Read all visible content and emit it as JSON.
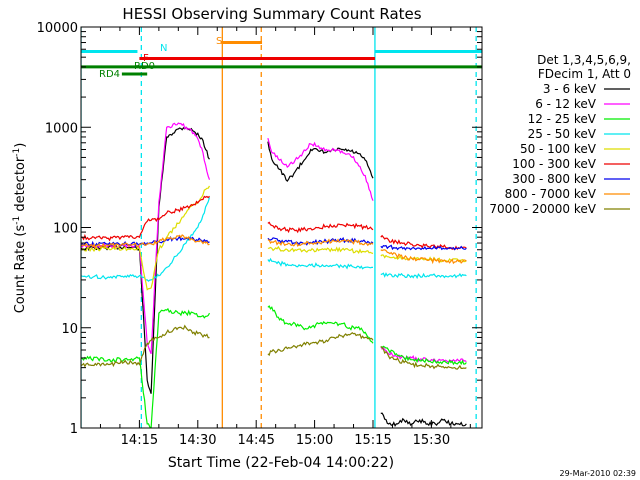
{
  "chart_data": {
    "type": "line",
    "title": "HESSI Observing Summary Count Rates",
    "xlabel": "Start Time (22-Feb-04 14:00:22)",
    "ylabel_main": "Count Rate (s",
    "ylabel_sup": "-1",
    "ylabel_mid": " detector",
    "ylabel_sup2": "-1",
    "ylabel_end": ")",
    "timestamp": "29-Mar-2010 02:39",
    "x_unit": "minutes after 14:00",
    "xlim": [
      0,
      103
    ],
    "yscale": "log",
    "ylim": [
      1,
      10000
    ],
    "xticks": [
      {
        "value": 15,
        "label": "14:15"
      },
      {
        "value": 30,
        "label": "14:30"
      },
      {
        "value": 45,
        "label": "14:45"
      },
      {
        "value": 60,
        "label": "15:00"
      },
      {
        "value": 75,
        "label": "15:15"
      },
      {
        "value": 90,
        "label": "15:30"
      }
    ],
    "yticks": [
      {
        "value": 1,
        "label": "1"
      },
      {
        "value": 10,
        "label": "10"
      },
      {
        "value": 100,
        "label": "100"
      },
      {
        "value": 1000,
        "label": "1000"
      },
      {
        "value": 10000,
        "label": "10000"
      }
    ],
    "legend_header": [
      "Det 1,3,4,5,6,9,",
      "FDecim 1, Att 0"
    ],
    "series": [
      {
        "name": "3 - 6 keV",
        "color": "#000000",
        "x": [
          0,
          7,
          11,
          13,
          15,
          17,
          18,
          20,
          22,
          25,
          27,
          29,
          31,
          32,
          33,
          34.5,
          42,
          45,
          46.5,
          48,
          49,
          51,
          53,
          55,
          57,
          59,
          61,
          63,
          65,
          67,
          69,
          71,
          73,
          74,
          75,
          75.7,
          77,
          79,
          81,
          83,
          85,
          87,
          89,
          91,
          93,
          95,
          97,
          99
        ],
        "y": [
          62,
          63,
          64,
          63,
          62,
          3,
          2.2,
          160,
          800,
          960,
          1000,
          910,
          780,
          600,
          480,
          null,
          null,
          null,
          null,
          720,
          480,
          380,
          290,
          360,
          450,
          600,
          580,
          560,
          590,
          600,
          580,
          550,
          470,
          390,
          310,
          null,
          1.4,
          1.1,
          1.1,
          1.2,
          1.1,
          1.2,
          1.1,
          1.1,
          1.2,
          1.1,
          1.1,
          1.1
        ]
      },
      {
        "name": "6 - 12 keV",
        "color": "#ff00ff",
        "x": [
          0,
          7,
          11,
          13,
          15,
          17,
          18,
          20,
          22,
          25,
          27,
          29,
          31,
          32,
          33,
          34.5,
          42,
          45,
          46.5,
          48,
          49,
          51,
          53,
          55,
          57,
          59,
          61,
          63,
          65,
          67,
          69,
          71,
          73,
          74,
          75,
          75.7,
          77,
          79,
          81,
          83,
          85,
          87,
          89,
          91,
          93,
          95,
          97,
          99
        ],
        "y": [
          65,
          66,
          66,
          65,
          64,
          7,
          5.5,
          180,
          1000,
          1100,
          1000,
          880,
          620,
          420,
          300,
          null,
          null,
          null,
          null,
          780,
          560,
          470,
          400,
          470,
          560,
          680,
          650,
          600,
          600,
          580,
          540,
          440,
          330,
          240,
          185,
          null,
          6.5,
          5.5,
          5.2,
          5,
          5,
          4.8,
          4.8,
          4.7,
          4.8,
          4.7,
          4.7,
          4.6
        ]
      },
      {
        "name": "12 - 25 keV",
        "color": "#00ee00",
        "x": [
          0,
          7,
          11,
          13,
          15,
          17,
          18,
          20,
          22,
          25,
          27,
          29,
          31,
          32,
          33,
          34.5,
          42,
          45,
          46.5,
          48,
          49,
          51,
          53,
          55,
          57,
          59,
          61,
          63,
          65,
          67,
          69,
          71,
          73,
          74,
          75,
          75.7,
          77,
          79,
          81,
          83,
          85,
          87,
          89,
          91,
          93,
          95,
          97,
          99
        ],
        "y": [
          5,
          4.8,
          4.8,
          4.9,
          5,
          1.1,
          1,
          14,
          15,
          14,
          14,
          14,
          13,
          13,
          14,
          null,
          null,
          null,
          null,
          16,
          16,
          12,
          11,
          11,
          10,
          10,
          11,
          11,
          11,
          11,
          10,
          10,
          9,
          8,
          7,
          null,
          6.5,
          6,
          5.5,
          5,
          4.8,
          4.7,
          4.7,
          4.6,
          4.6,
          4.5,
          4.5,
          4.5
        ]
      },
      {
        "name": "25 - 50 keV",
        "color": "#00e5ee",
        "x": [
          0,
          7,
          11,
          13,
          15,
          17,
          18,
          20,
          22,
          25,
          27,
          29,
          31,
          32,
          33,
          34.5,
          42,
          45,
          46.5,
          48,
          49,
          51,
          53,
          55,
          57,
          59,
          61,
          63,
          65,
          67,
          69,
          71,
          73,
          74,
          75,
          75.7,
          77,
          79,
          81,
          83,
          85,
          87,
          89,
          91,
          93,
          95,
          97,
          99
        ],
        "y": [
          33,
          32,
          32,
          33,
          33,
          30,
          30,
          33,
          40,
          55,
          70,
          90,
          120,
          160,
          200,
          null,
          null,
          null,
          null,
          48,
          46,
          44,
          43,
          42,
          42,
          42,
          42,
          42,
          42,
          41,
          41,
          41,
          40,
          40,
          40,
          null,
          34,
          34,
          33,
          33,
          33,
          33,
          33,
          33,
          33,
          33,
          33,
          33
        ]
      },
      {
        "name": "50 - 100 keV",
        "color": "#dddd00",
        "x": [
          0,
          7,
          11,
          13,
          15,
          17,
          18,
          20,
          22,
          25,
          27,
          29,
          31,
          32,
          33,
          34.5,
          42,
          45,
          46.5,
          48,
          49,
          51,
          53,
          55,
          57,
          59,
          61,
          63,
          65,
          67,
          69,
          71,
          73,
          74,
          75,
          75.7,
          77,
          79,
          81,
          83,
          85,
          87,
          89,
          91,
          93,
          95,
          97,
          99
        ],
        "y": [
          60,
          62,
          62,
          62,
          61,
          24,
          25,
          60,
          80,
          110,
          140,
          170,
          200,
          240,
          260,
          null,
          null,
          null,
          null,
          62,
          62,
          61,
          60,
          60,
          59,
          59,
          59,
          60,
          60,
          60,
          59,
          58,
          57,
          56,
          55,
          null,
          52,
          51,
          50,
          50,
          49,
          48,
          48,
          48,
          47,
          47,
          47,
          47
        ]
      },
      {
        "name": "100 - 300 keV",
        "color": "#ee0000",
        "x": [
          0,
          7,
          11,
          13,
          15,
          17,
          18,
          20,
          22,
          25,
          27,
          29,
          31,
          32,
          33,
          34.5,
          42,
          45,
          46.5,
          48,
          49,
          51,
          53,
          55,
          57,
          59,
          61,
          63,
          65,
          67,
          69,
          71,
          73,
          74,
          75,
          75.7,
          77,
          79,
          81,
          83,
          85,
          87,
          89,
          91,
          93,
          95,
          97,
          99
        ],
        "y": [
          80,
          78,
          80,
          82,
          80,
          115,
          118,
          120,
          140,
          150,
          160,
          170,
          190,
          200,
          205,
          null,
          null,
          null,
          null,
          110,
          105,
          98,
          95,
          93,
          95,
          98,
          100,
          103,
          105,
          107,
          106,
          103,
          100,
          98,
          95,
          null,
          80,
          75,
          72,
          70,
          68,
          66,
          65,
          64,
          64,
          63,
          63,
          62
        ]
      },
      {
        "name": "300 - 800 keV",
        "color": "#0000ee",
        "x": [
          0,
          7,
          11,
          13,
          15,
          17,
          18,
          20,
          22,
          25,
          27,
          29,
          31,
          32,
          33,
          34.5,
          42,
          45,
          46.5,
          48,
          49,
          51,
          53,
          55,
          57,
          59,
          61,
          63,
          65,
          67,
          69,
          71,
          73,
          74,
          75,
          75.7,
          77,
          79,
          81,
          83,
          85,
          87,
          89,
          91,
          93,
          95,
          97,
          99
        ],
        "y": [
          68,
          68,
          69,
          69,
          68,
          70,
          70,
          72,
          76,
          78,
          78,
          76,
          74,
          73,
          72,
          null,
          null,
          null,
          null,
          78,
          76,
          74,
          72,
          70,
          70,
          71,
          72,
          73,
          74,
          75,
          74,
          73,
          72,
          71,
          70,
          null,
          65,
          64,
          63,
          63,
          62,
          62,
          62,
          62,
          62,
          62,
          62,
          62
        ]
      },
      {
        "name": "800 - 7000 keV",
        "color": "#ff8c00",
        "x": [
          0,
          7,
          11,
          13,
          15,
          17,
          18,
          20,
          22,
          25,
          27,
          29,
          31,
          32,
          33,
          34.5,
          42,
          45,
          46.5,
          48,
          49,
          51,
          53,
          55,
          57,
          59,
          61,
          63,
          65,
          67,
          69,
          71,
          73,
          74,
          75,
          75.7,
          77,
          79,
          81,
          83,
          85,
          87,
          89,
          91,
          93,
          95,
          97,
          99
        ],
        "y": [
          66,
          66,
          67,
          67,
          67,
          68,
          69,
          72,
          78,
          82,
          80,
          75,
          72,
          70,
          68,
          null,
          null,
          null,
          null,
          75,
          72,
          70,
          68,
          68,
          69,
          70,
          71,
          72,
          73,
          74,
          72,
          71,
          70,
          69,
          68,
          null,
          60,
          56,
          53,
          50,
          49,
          48,
          47,
          47,
          46,
          46,
          46,
          46
        ]
      },
      {
        "name": "7000 - 20000 keV",
        "color": "#808000",
        "x": [
          0,
          7,
          11,
          13,
          15,
          17,
          18,
          20,
          22,
          25,
          27,
          29,
          31,
          32,
          33,
          34.5,
          42,
          45,
          46.5,
          48,
          49,
          51,
          53,
          55,
          57,
          59,
          61,
          63,
          65,
          67,
          69,
          71,
          73,
          74,
          75,
          75.7,
          77,
          79,
          81,
          83,
          85,
          87,
          89,
          91,
          93,
          95,
          97,
          99
        ],
        "y": [
          4.2,
          4.3,
          4.5,
          4.5,
          4.3,
          7,
          7.5,
          8,
          9,
          10,
          10,
          9,
          8.5,
          8.3,
          8,
          null,
          null,
          null,
          null,
          5.5,
          5.8,
          6,
          6.2,
          6.5,
          6.8,
          7,
          7.2,
          7.5,
          8,
          8.3,
          8.5,
          8.5,
          8,
          7.8,
          7.5,
          null,
          6.5,
          5.2,
          4.8,
          4.5,
          4.3,
          4.2,
          4.2,
          4.1,
          4.1,
          4,
          4,
          4
        ]
      }
    ],
    "flag_bars": [
      {
        "name": "N",
        "label": "N",
        "color": "#00e5ee",
        "y": 5700,
        "segments": [
          [
            0,
            14.5
          ],
          [
            75.5,
            103
          ]
        ]
      },
      {
        "name": "S",
        "label": "S",
        "color": "#ff8c00",
        "y": 7000,
        "segments": [
          [
            36,
            46.5
          ]
        ]
      },
      {
        "name": "F",
        "label": "F",
        "color": "#ee0000",
        "y": 4850,
        "segments": [
          [
            15,
            75.5
          ]
        ]
      },
      {
        "name": "RD0",
        "label": "RD0",
        "color": "#008000",
        "y": 4000,
        "segments": [
          [
            0,
            103
          ]
        ]
      },
      {
        "name": "RD4",
        "label": "RD4",
        "color": "#008000",
        "y": 3400,
        "segments": [
          [
            10.5,
            17
          ]
        ]
      }
    ],
    "vertical_lines": [
      {
        "x": 0,
        "color": "#00e5ee",
        "style": "solid"
      },
      {
        "x": 15.5,
        "color": "#00e5ee",
        "style": "dashed"
      },
      {
        "x": 36.3,
        "color": "#ff8c00",
        "style": "solid"
      },
      {
        "x": 46.3,
        "color": "#ff8c00",
        "style": "dashed"
      },
      {
        "x": 75.5,
        "color": "#00e5ee",
        "style": "solid"
      },
      {
        "x": 101.5,
        "color": "#00e5ee",
        "style": "dashed"
      }
    ]
  }
}
